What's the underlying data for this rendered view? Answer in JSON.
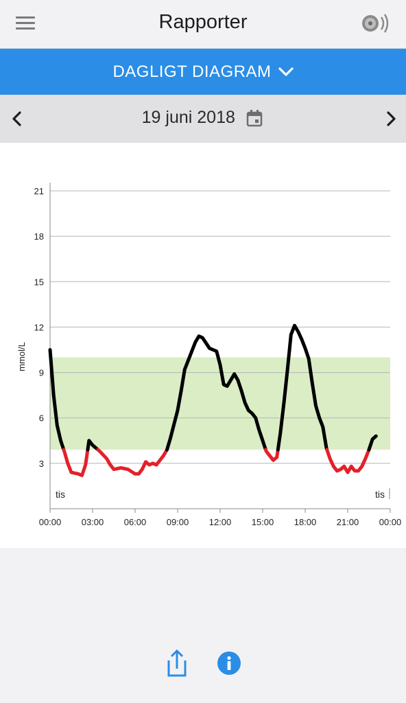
{
  "header": {
    "title": "Rapporter",
    "menu_icon": "hamburger-menu-icon",
    "sensor_icon": "sensor-scan-icon"
  },
  "report_selector": {
    "label": "DAGLIGT DIAGRAM",
    "icon": "chevron-down-icon"
  },
  "date_nav": {
    "date": "19 juni 2018",
    "prev_icon": "chevron-left-icon",
    "next_icon": "chevron-right-icon",
    "calendar_icon": "calendar-icon"
  },
  "colors": {
    "accent": "#2b8de6",
    "target_band": "#daedc5",
    "low_line": "#e4202a",
    "normal_line": "#000000"
  },
  "chart_data": {
    "type": "line",
    "ylabel": "mmol/L",
    "ylim": [
      0,
      21
    ],
    "yticks": [
      3,
      6,
      9,
      12,
      15,
      18,
      21
    ],
    "xlim": [
      "00:00",
      "24:00"
    ],
    "xtick_labels": [
      "00:00",
      "03:00",
      "06:00",
      "09:00",
      "12:00",
      "15:00",
      "18:00",
      "21:00",
      "00:00"
    ],
    "target_range": [
      3.9,
      10.0
    ],
    "low_threshold": 3.9,
    "day_labels": [
      "tis",
      "tis"
    ],
    "grid": true,
    "series": [
      {
        "x": [
          0,
          0.25,
          0.5,
          0.75,
          1.0,
          1.25,
          1.5,
          2.0,
          2.25,
          2.5,
          2.75,
          3.0,
          3.5,
          4.0,
          4.25,
          4.5,
          5.0,
          5.5,
          6.0,
          6.25,
          6.5,
          6.75,
          7.0,
          7.25,
          7.5,
          8.0,
          8.25,
          8.5,
          9.0,
          9.25,
          9.5,
          9.75,
          10.25,
          10.5,
          10.75,
          11.25,
          11.5,
          11.75,
          12.0,
          12.25,
          12.5,
          12.75,
          13.0,
          13.25,
          13.5,
          13.75,
          14.0,
          14.25,
          14.5,
          14.75,
          15.0,
          15.25,
          15.5,
          15.75,
          16.0,
          16.25,
          16.5,
          16.75,
          17.0,
          17.25,
          17.5,
          17.75,
          18.0,
          18.25,
          18.5,
          18.75,
          19.0,
          19.25,
          19.5,
          19.75,
          20.0,
          20.25,
          20.5,
          20.75,
          21.0,
          21.25,
          21.5,
          21.75,
          22.0,
          22.25,
          22.5,
          22.75,
          23.0
        ],
        "y": [
          10.5,
          7.5,
          5.5,
          4.5,
          3.8,
          3.0,
          2.4,
          2.3,
          2.2,
          2.9,
          4.5,
          4.2,
          3.8,
          3.3,
          2.9,
          2.6,
          2.7,
          2.6,
          2.3,
          2.3,
          2.6,
          3.1,
          2.9,
          3.0,
          2.9,
          3.5,
          3.9,
          4.7,
          6.5,
          7.8,
          9.2,
          9.8,
          11.0,
          11.4,
          11.3,
          10.6,
          10.5,
          10.4,
          9.5,
          8.2,
          8.1,
          8.5,
          8.9,
          8.5,
          7.8,
          7.0,
          6.5,
          6.3,
          6.0,
          5.2,
          4.5,
          3.8,
          3.5,
          3.2,
          3.4,
          5.0,
          7.0,
          9.2,
          11.5,
          12.1,
          11.7,
          11.2,
          10.6,
          9.9,
          8.3,
          6.8,
          6.0,
          5.4,
          4.0,
          3.3,
          2.8,
          2.5,
          2.6,
          2.8,
          2.4,
          2.8,
          2.5,
          2.5,
          2.8,
          3.3,
          3.9,
          4.6,
          4.8
        ]
      }
    ]
  },
  "footer": {
    "share_icon": "share-icon",
    "info_icon": "info-icon"
  }
}
